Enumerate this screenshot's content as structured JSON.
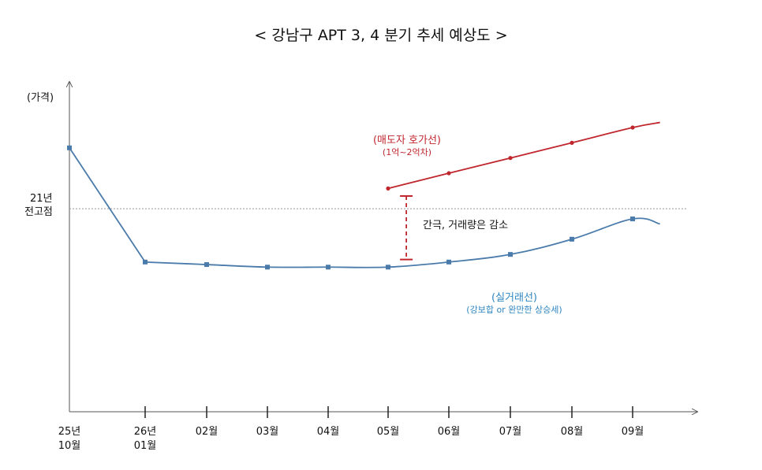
{
  "title": "< 강남구 APT 3, 4 분기 추세 예상도 >",
  "chart_data": {
    "type": "line",
    "title": "< 강남구 APT 3, 4 분기 추세 예상도 >",
    "ylabel": "(가격)",
    "xlabel": "",
    "categories": [
      [
        "25년",
        "10월"
      ],
      [
        "26년",
        "01월"
      ],
      [
        "02월"
      ],
      [
        "03월"
      ],
      [
        "04월"
      ],
      [
        "05월"
      ],
      [
        "06월"
      ],
      [
        "07월"
      ],
      [
        "08월"
      ],
      [
        "09월"
      ]
    ],
    "reference_line": {
      "label": [
        "21년",
        "전고점"
      ],
      "style": "dotted",
      "value": 80
    },
    "ylim": [
      0,
      130
    ],
    "series": [
      {
        "name": "(실거래선)",
        "note": "(강보합 or 완만한 상승세)",
        "color": "#4a7bab",
        "x": [
          0,
          1,
          2,
          3,
          4,
          5,
          6,
          7,
          8,
          9
        ],
        "values": [
          104,
          59,
          58,
          57,
          57,
          57,
          59,
          62,
          68,
          76
        ],
        "end": {
          "x": 9.45,
          "value": 74
        }
      },
      {
        "name": "(매도자 호가선)",
        "note": "(1억~2억차)",
        "color": "#c0262d",
        "x": [
          5,
          6,
          7,
          8,
          9
        ],
        "values": [
          88,
          94,
          100,
          106,
          112
        ],
        "end": {
          "x": 9.45,
          "value": 114
        }
      }
    ],
    "annotation": {
      "text": "간극, 거래량은 감소",
      "x": 5.3,
      "from": 85,
      "to": 60,
      "color": "#c0262d",
      "style": "dashed"
    },
    "grid": false,
    "legend": "inline"
  }
}
